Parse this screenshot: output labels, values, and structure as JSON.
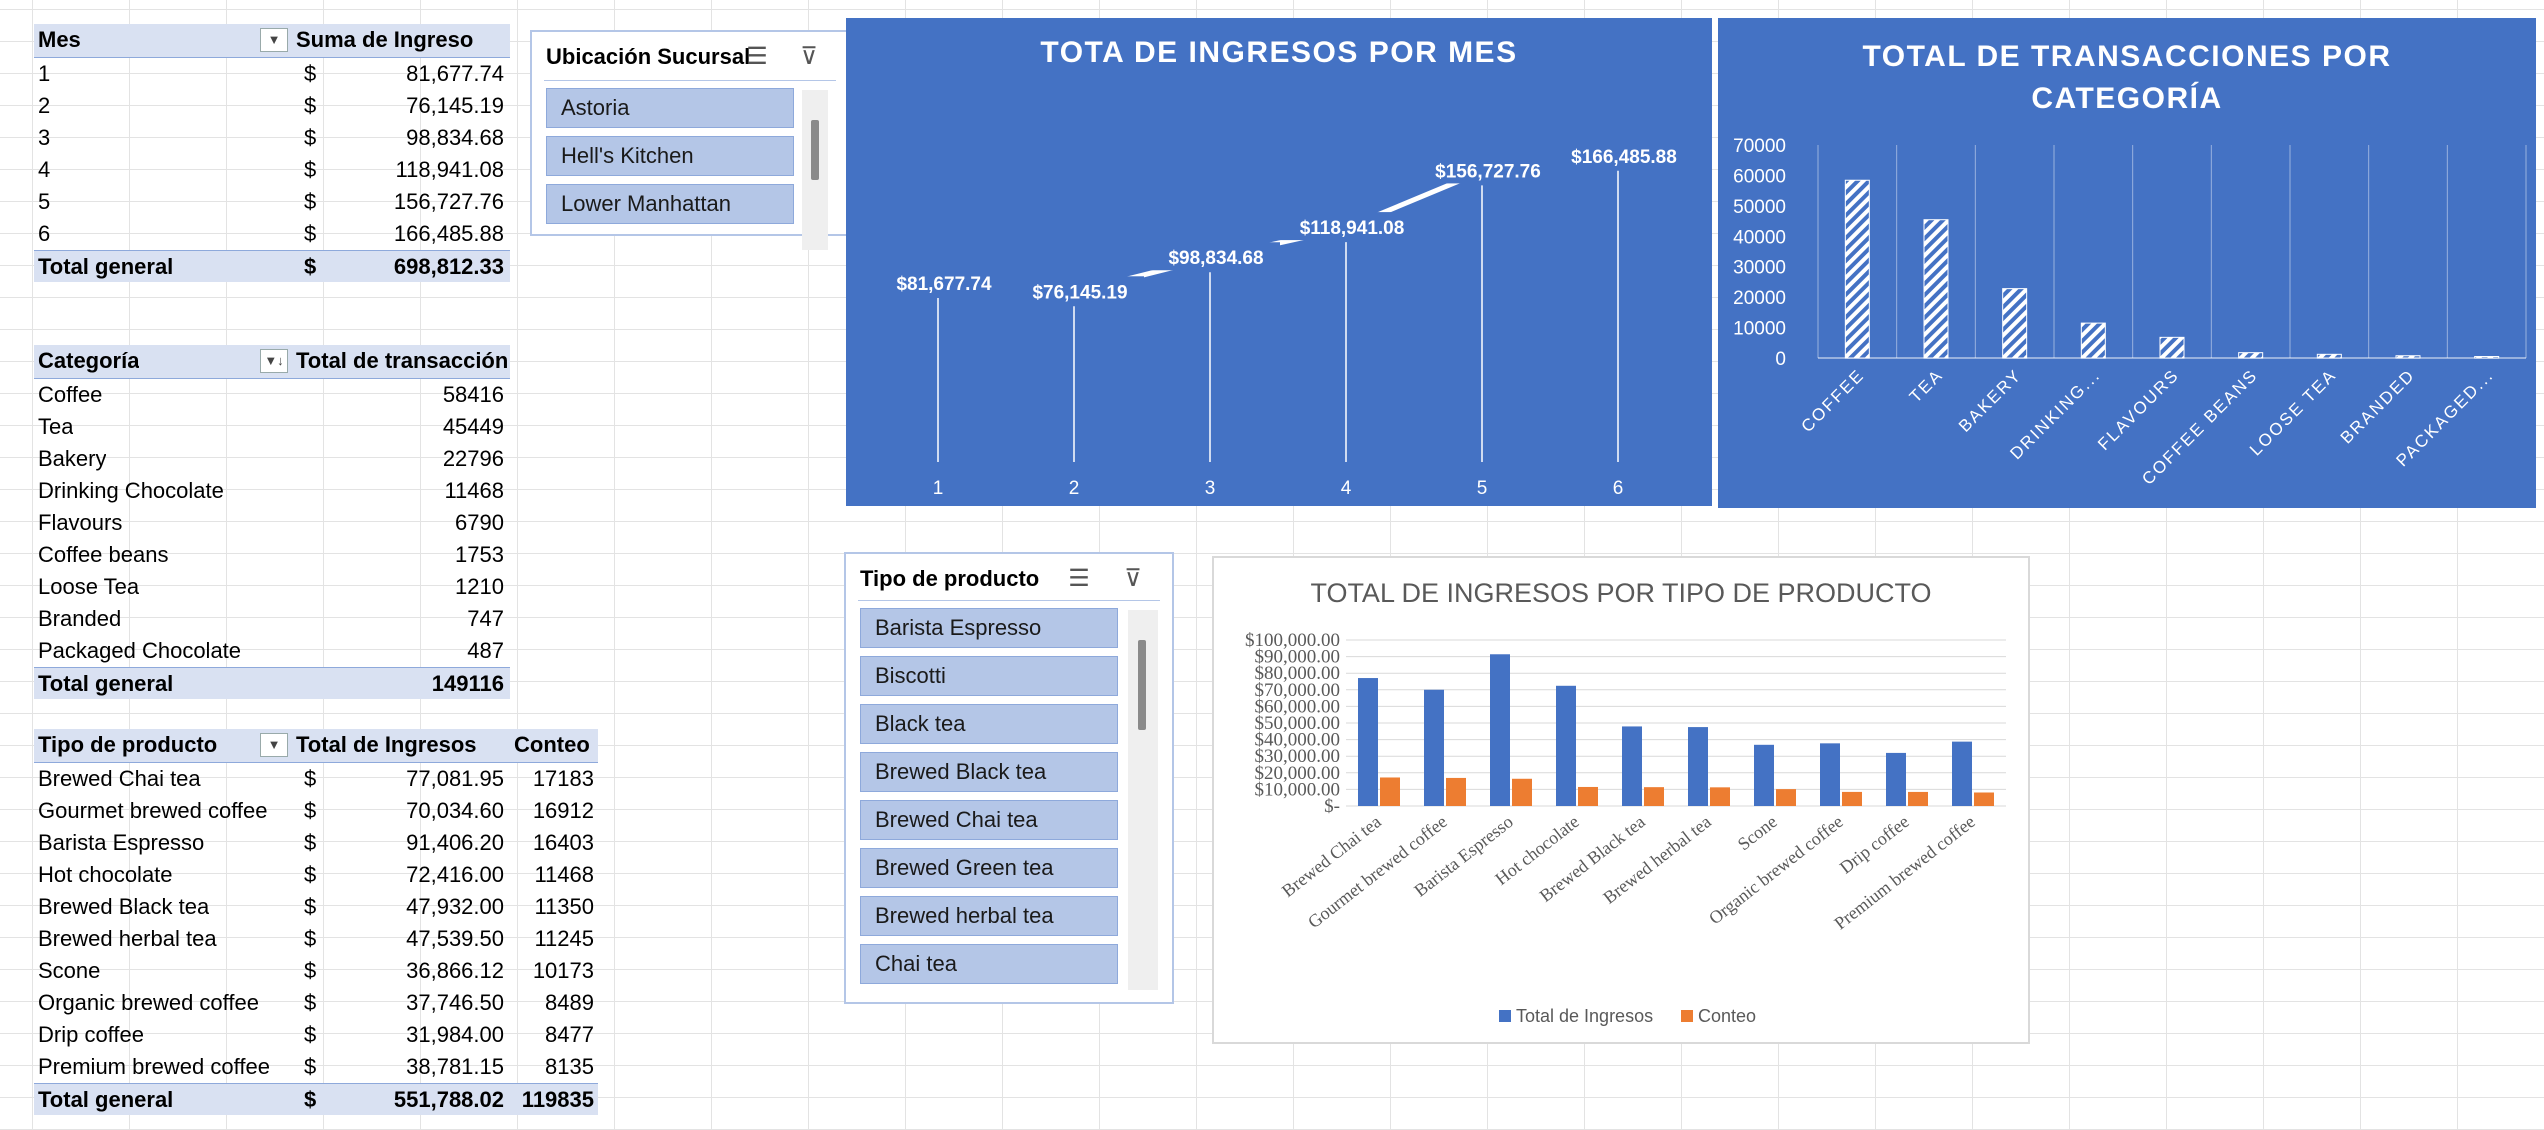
{
  "pivot_month": {
    "col1": "Mes",
    "col2": "Suma de Ingreso",
    "currency": "$",
    "rows": [
      {
        "mes": "1",
        "ingreso": "81,677.74"
      },
      {
        "mes": "2",
        "ingreso": "76,145.19"
      },
      {
        "mes": "3",
        "ingreso": "98,834.68"
      },
      {
        "mes": "4",
        "ingreso": "118,941.08"
      },
      {
        "mes": "5",
        "ingreso": "156,727.76"
      },
      {
        "mes": "6",
        "ingreso": "166,485.88"
      }
    ],
    "total_label": "Total general",
    "total_value": "698,812.33"
  },
  "pivot_category": {
    "col1": "Categoría",
    "col2": "Total de transacción",
    "rows": [
      {
        "cat": "Coffee",
        "val": "58416"
      },
      {
        "cat": "Tea",
        "val": "45449"
      },
      {
        "cat": "Bakery",
        "val": "22796"
      },
      {
        "cat": "Drinking Chocolate",
        "val": "11468"
      },
      {
        "cat": "Flavours",
        "val": "6790"
      },
      {
        "cat": "Coffee beans",
        "val": "1753"
      },
      {
        "cat": "Loose Tea",
        "val": "1210"
      },
      {
        "cat": "Branded",
        "val": "747"
      },
      {
        "cat": "Packaged Chocolate",
        "val": "487"
      }
    ],
    "total_label": "Total general",
    "total_value": "149116"
  },
  "pivot_product": {
    "col1": "Tipo de producto",
    "col2": "Total de Ingresos",
    "col3": "Conteo",
    "currency": "$",
    "rows": [
      {
        "tipo": "Brewed Chai tea",
        "ing": "77,081.95",
        "conteo": "17183"
      },
      {
        "tipo": "Gourmet brewed coffee",
        "ing": "70,034.60",
        "conteo": "16912"
      },
      {
        "tipo": "Barista Espresso",
        "ing": "91,406.20",
        "conteo": "16403"
      },
      {
        "tipo": "Hot chocolate",
        "ing": "72,416.00",
        "conteo": "11468"
      },
      {
        "tipo": "Brewed Black tea",
        "ing": "47,932.00",
        "conteo": "11350"
      },
      {
        "tipo": "Brewed herbal tea",
        "ing": "47,539.50",
        "conteo": "11245"
      },
      {
        "tipo": "Scone",
        "ing": "36,866.12",
        "conteo": "10173"
      },
      {
        "tipo": "Organic brewed coffee",
        "ing": "37,746.50",
        "conteo": "8489"
      },
      {
        "tipo": "Drip coffee",
        "ing": "31,984.00",
        "conteo": "8477"
      },
      {
        "tipo": "Premium brewed coffee",
        "ing": "38,781.15",
        "conteo": "8135"
      }
    ],
    "total_label": "Total general",
    "total_ing": "551,788.02",
    "total_conteo": "119835"
  },
  "slicer_branch": {
    "title": "Ubicación Sucursal",
    "items": [
      "Astoria",
      "Hell's Kitchen",
      "Lower Manhattan"
    ]
  },
  "slicer_product": {
    "title": "Tipo de producto",
    "items": [
      "Barista Espresso",
      "Biscotti",
      "Black tea",
      "Brewed Black tea",
      "Brewed Chai tea",
      "Brewed Green tea",
      "Brewed herbal tea",
      "Chai tea"
    ]
  },
  "chart_data": [
    {
      "type": "line",
      "title": "TOTA DE INGRESOS POR MES",
      "x": [
        "1",
        "2",
        "3",
        "4",
        "5",
        "6"
      ],
      "values": [
        81677.74,
        76145.19,
        98834.68,
        118941.08,
        156727.76,
        166485.88
      ],
      "data_labels": [
        "$81,677.74",
        "$76,145.19",
        "$98,834.68",
        "$118,941.08",
        "$156,727.76",
        "$166,485.88"
      ],
      "background": "#4472c4",
      "grid": false
    },
    {
      "type": "bar",
      "title": "TOTAL DE TRANSACCIONES POR CATEGORÍA",
      "categories": [
        "COFFEE",
        "TEA",
        "BAKERY",
        "DRINKING...",
        "FLAVOURS",
        "COFFEE BEANS",
        "LOOSE TEA",
        "BRANDED",
        "PACKAGED..."
      ],
      "values": [
        58416,
        45449,
        22796,
        11468,
        6790,
        1753,
        1210,
        747,
        487
      ],
      "yticks": [
        "0",
        "10000",
        "20000",
        "30000",
        "40000",
        "50000",
        "60000",
        "70000"
      ],
      "ylim": [
        0,
        70000
      ],
      "background": "#4472c4",
      "bar_fill": "hatched-white"
    },
    {
      "type": "bar",
      "title": "TOTAL DE INGRESOS POR TIPO DE PRODUCTO",
      "categories": [
        "Brewed Chai tea",
        "Gourmet brewed coffee",
        "Barista Espresso",
        "Hot chocolate",
        "Brewed Black tea",
        "Brewed herbal tea",
        "Scone",
        "Organic brewed coffee",
        "Drip coffee",
        "Premium brewed coffee"
      ],
      "series": [
        {
          "name": "Total de Ingresos",
          "color": "#4472c4",
          "values": [
            77081.95,
            70034.6,
            91406.2,
            72416.0,
            47932.0,
            47539.5,
            36866.12,
            37746.5,
            31984.0,
            38781.15
          ]
        },
        {
          "name": "Conteo",
          "color": "#ed7d31",
          "values": [
            17183,
            16912,
            16403,
            11468,
            11350,
            11245,
            10173,
            8489,
            8477,
            8135
          ]
        }
      ],
      "yticks": [
        "$-",
        "$10,000.00",
        "$20,000.00",
        "$30,000.00",
        "$40,000.00",
        "$50,000.00",
        "$60,000.00",
        "$70,000.00",
        "$80,000.00",
        "$90,000.00",
        "$100,000.00"
      ],
      "ylim": [
        0,
        100000
      ],
      "legend": "bottom"
    }
  ]
}
